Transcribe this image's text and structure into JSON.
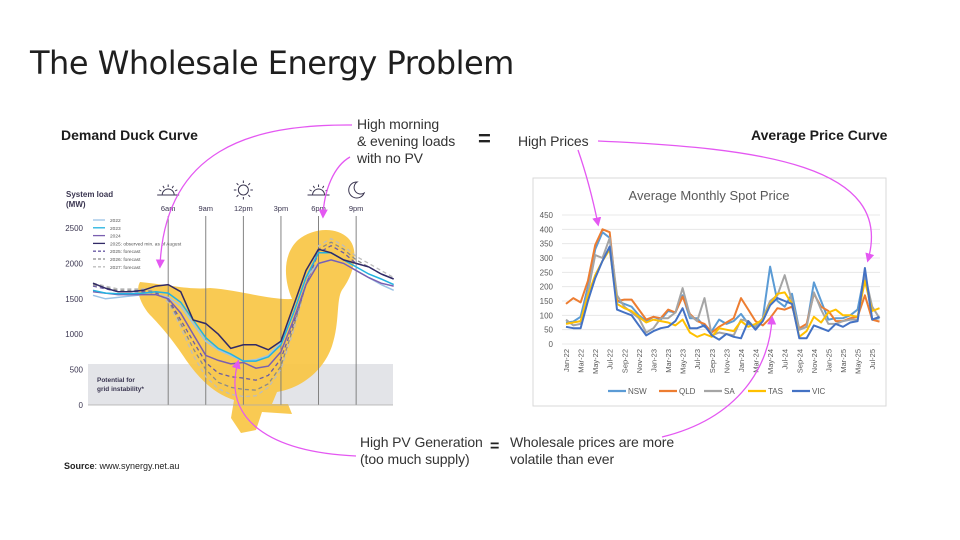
{
  "slide": {
    "title": "The Wholesale Energy Problem",
    "left_heading": "Demand Duck Curve",
    "right_heading": "Average Price Curve",
    "equals": "=",
    "note_morning": [
      "High morning",
      "& evening loads",
      "with no PV"
    ],
    "note_prices": "High Prices",
    "note_pv": [
      "High PV Generation",
      "(too much supply)"
    ],
    "note_volatile": [
      "Wholesale prices are more",
      "volatile than ever"
    ],
    "source_label": "Source",
    "source_value": ": www.synergy.net.au",
    "accent_color": "#e458f2"
  },
  "chart_data": [
    {
      "type": "line",
      "title": "",
      "ylabel": "System load (MW)",
      "ylim": [
        0,
        2500
      ],
      "yticks": [
        "0",
        "500",
        "1000",
        "1500",
        "2000",
        "2500"
      ],
      "x_unit": "hour of day",
      "xlim": [
        0,
        24
      ],
      "time_markers": [
        {
          "label": "6am",
          "hour": 6,
          "icon": "sunrise-icon"
        },
        {
          "label": "9am",
          "hour": 9,
          "icon": ""
        },
        {
          "label": "12pm",
          "hour": 12,
          "icon": "sun-icon"
        },
        {
          "label": "3pm",
          "hour": 15,
          "icon": ""
        },
        {
          "label": "6pm",
          "hour": 18,
          "icon": "sunset-icon"
        },
        {
          "label": "9pm",
          "hour": 21,
          "icon": "moon-icon"
        }
      ],
      "band": {
        "label": [
          "Potential for",
          "grid instability*"
        ],
        "from": 0,
        "to": 580,
        "color": "#e3e4e8"
      },
      "background_shape": {
        "name": "duck",
        "color": "#f8c440"
      },
      "legend_position": "top-left",
      "x": [
        0,
        1,
        2,
        3,
        4,
        5,
        6,
        7,
        8,
        9,
        10,
        11,
        12,
        13,
        14,
        15,
        16,
        17,
        18,
        19,
        20,
        21,
        22,
        23,
        24
      ],
      "series": [
        {
          "name": "2022",
          "color": "#9cc3e6",
          "dash": false,
          "values": [
            1550,
            1500,
            1520,
            1540,
            1560,
            1560,
            1520,
            1400,
            1150,
            900,
            780,
            700,
            620,
            640,
            700,
            880,
            1300,
            1800,
            2000,
            2050,
            2000,
            1900,
            1800,
            1700,
            1620
          ]
        },
        {
          "name": "2023",
          "color": "#22b2e0",
          "dash": false,
          "values": [
            1620,
            1580,
            1570,
            1570,
            1580,
            1600,
            1580,
            1450,
            1200,
            950,
            800,
            720,
            620,
            620,
            680,
            850,
            1300,
            1800,
            2150,
            2150,
            2050,
            1950,
            1850,
            1780,
            1700
          ]
        },
        {
          "name": "2024",
          "color": "#7a5fb0",
          "dash": false,
          "values": [
            1600,
            1580,
            1560,
            1560,
            1560,
            1560,
            1500,
            1300,
            1000,
            700,
            630,
            580,
            600,
            520,
            550,
            750,
            1200,
            1700,
            2000,
            2050,
            2000,
            1900,
            1800,
            1720,
            1680
          ]
        },
        {
          "name": "2025: observed min. as of August",
          "color": "#312a66",
          "dash": false,
          "values": [
            1720,
            1650,
            1600,
            1600,
            1620,
            1680,
            1700,
            1600,
            1200,
            1150,
            1000,
            800,
            850,
            850,
            780,
            900,
            1400,
            1900,
            2200,
            2150,
            2050,
            2000,
            1950,
            1850,
            1780
          ]
        },
        {
          "name": "2025: forecast",
          "color": "#6b5ca5",
          "dash": true,
          "values": [
            1680,
            1640,
            1600,
            1600,
            1600,
            1580,
            1500,
            1200,
            900,
            600,
            450,
            400,
            380,
            350,
            420,
            650,
            1150,
            1700,
            2150,
            2250,
            2150,
            2000,
            1950,
            1850,
            1780
          ]
        },
        {
          "name": "2026: forecast",
          "color": "#8a8a8a",
          "dash": true,
          "values": [
            1700,
            1660,
            1620,
            1620,
            1620,
            1600,
            1480,
            1150,
            800,
            500,
            320,
            250,
            220,
            210,
            300,
            550,
            1100,
            1700,
            2200,
            2300,
            2200,
            2050,
            1950,
            1850,
            1780
          ]
        },
        {
          "name": "2027: forecast",
          "color": "#bdbdbd",
          "dash": true,
          "values": [
            1720,
            1680,
            1640,
            1640,
            1640,
            1600,
            1450,
            1100,
            700,
            400,
            230,
            150,
            120,
            130,
            250,
            500,
            1050,
            1700,
            2250,
            2350,
            2250,
            2100,
            2000,
            1900,
            1800
          ]
        }
      ]
    },
    {
      "type": "line",
      "title": "Average Monthly Spot Price",
      "xlabel": "",
      "ylabel": "",
      "ylim": [
        0,
        450
      ],
      "yticks": [
        "0",
        "50",
        "100",
        "150",
        "200",
        "250",
        "300",
        "350",
        "400",
        "450"
      ],
      "grid": true,
      "legend_position": "bottom",
      "xtick_labels": [
        "Jan-22",
        "Mar-22",
        "May-22",
        "Jul-22",
        "Sep-22",
        "Nov-22",
        "Jan-23",
        "Mar-23",
        "May-23",
        "Jul-23",
        "Sep-23",
        "Nov-23",
        "Jan-24",
        "Mar-24",
        "May-24",
        "Jul-24",
        "Sep-24",
        "Nov-24",
        "Jan-25",
        "Mar-25",
        "May-25",
        "Jul-25"
      ],
      "x_range": [
        "Jan-22",
        "Aug-25"
      ],
      "series": [
        {
          "name": "NSW",
          "color": "#5b9bd5",
          "values": [
            75,
            78,
            95,
            200,
            330,
            390,
            370,
            150,
            140,
            130,
            100,
            80,
            95,
            85,
            115,
            110,
            170,
            90,
            90,
            60,
            45,
            85,
            70,
            80,
            105,
            70,
            60,
            90,
            270,
            150,
            130,
            175,
            50,
            60,
            215,
            150,
            85,
            90,
            90,
            100,
            120,
            250,
            85,
            90
          ]
        },
        {
          "name": "QLD",
          "color": "#ed7d31",
          "values": [
            140,
            160,
            145,
            220,
            345,
            400,
            390,
            150,
            155,
            155,
            120,
            85,
            95,
            90,
            120,
            110,
            165,
            105,
            80,
            70,
            40,
            60,
            75,
            90,
            160,
            120,
            80,
            65,
            90,
            125,
            120,
            130,
            55,
            70,
            175,
            130,
            115,
            80,
            80,
            90,
            95,
            170,
            85,
            78
          ]
        },
        {
          "name": "SA",
          "color": "#a5a5a5",
          "values": [
            85,
            65,
            70,
            180,
            310,
            300,
            370,
            170,
            130,
            110,
            90,
            40,
            55,
            90,
            90,
            110,
            195,
            100,
            80,
            160,
            30,
            40,
            35,
            30,
            85,
            80,
            55,
            90,
            150,
            170,
            240,
            150,
            50,
            60,
            180,
            120,
            70,
            70,
            80,
            85,
            85,
            240,
            130,
            90
          ]
        },
        {
          "name": "TAS",
          "color": "#ffc000",
          "values": [
            70,
            75,
            80,
            170,
            240,
            290,
            330,
            140,
            125,
            115,
            95,
            75,
            85,
            80,
            75,
            65,
            85,
            40,
            25,
            35,
            25,
            55,
            50,
            45,
            80,
            60,
            70,
            85,
            140,
            175,
            180,
            140,
            25,
            45,
            95,
            75,
            110,
            120,
            100,
            100,
            95,
            220,
            115,
            125
          ]
        },
        {
          "name": "VIC",
          "color": "#4472c4",
          "values": [
            60,
            55,
            55,
            150,
            230,
            290,
            340,
            120,
            110,
            100,
            65,
            30,
            45,
            55,
            60,
            80,
            125,
            55,
            55,
            65,
            30,
            15,
            35,
            25,
            20,
            80,
            50,
            80,
            135,
            160,
            150,
            140,
            20,
            20,
            65,
            55,
            45,
            70,
            60,
            75,
            80,
            265,
            85,
            95
          ]
        }
      ]
    }
  ]
}
